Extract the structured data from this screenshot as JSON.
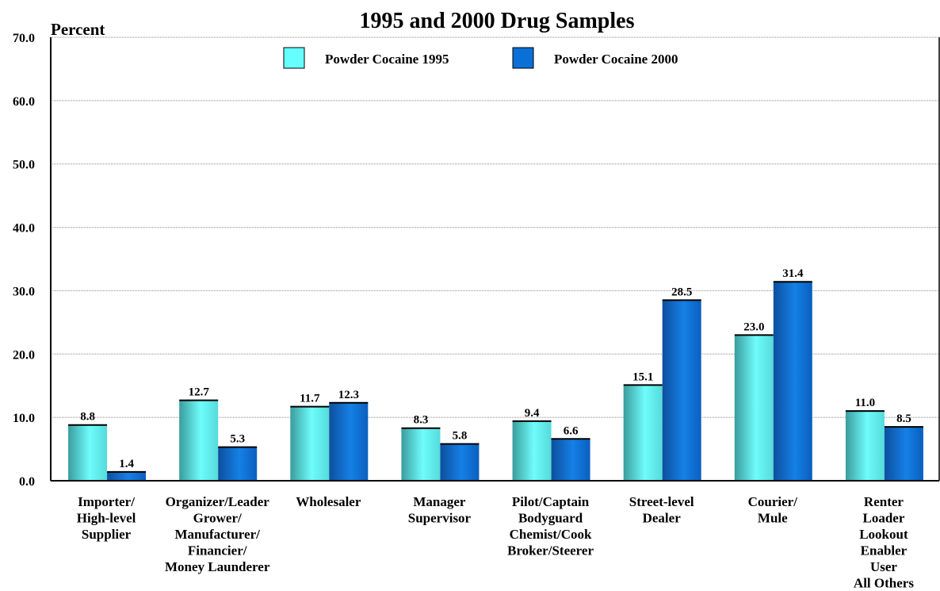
{
  "chart_data": {
    "type": "bar",
    "title": "1995 and 2000 Drug Samples",
    "ylabel": "Percent",
    "xlabel": "",
    "ylim": [
      0,
      70
    ],
    "yticks": [
      "0.0",
      "10.0",
      "20.0",
      "30.0",
      "40.0",
      "50.0",
      "60.0",
      "70.0"
    ],
    "grid": true,
    "legend_position": "top-center",
    "categories": [
      [
        "Importer/",
        "High-level",
        "Supplier"
      ],
      [
        "Organizer/Leader",
        "Grower/",
        "Manufacturer/",
        "Financier/",
        "Money Launderer"
      ],
      [
        "Wholesaler"
      ],
      [
        "Manager",
        "Supervisor"
      ],
      [
        "Pilot/Captain",
        "Bodyguard",
        "Chemist/Cook",
        "Broker/Steerer"
      ],
      [
        "Street-level",
        "Dealer"
      ],
      [
        "Courier/",
        "Mule"
      ],
      [
        "Renter",
        "Loader",
        "Lookout",
        "Enabler",
        "User",
        "All Others"
      ]
    ],
    "series": [
      {
        "name": "Powder Cocaine 1995",
        "color": "#66ffff",
        "values": [
          8.8,
          12.7,
          11.7,
          8.3,
          9.4,
          15.1,
          23.0,
          11.0
        ],
        "labels": [
          "8.8",
          "12.7",
          "11.7",
          "8.3",
          "9.4",
          "15.1",
          "23.0",
          "11.0"
        ]
      },
      {
        "name": "Powder Cocaine 2000",
        "color": "#0a6fd6",
        "values": [
          1.4,
          5.3,
          12.3,
          5.8,
          6.6,
          28.5,
          31.4,
          8.5
        ],
        "labels": [
          "1.4",
          "5.3",
          "12.3",
          "5.8",
          "6.6",
          "28.5",
          "31.4",
          "8.5"
        ]
      }
    ]
  }
}
